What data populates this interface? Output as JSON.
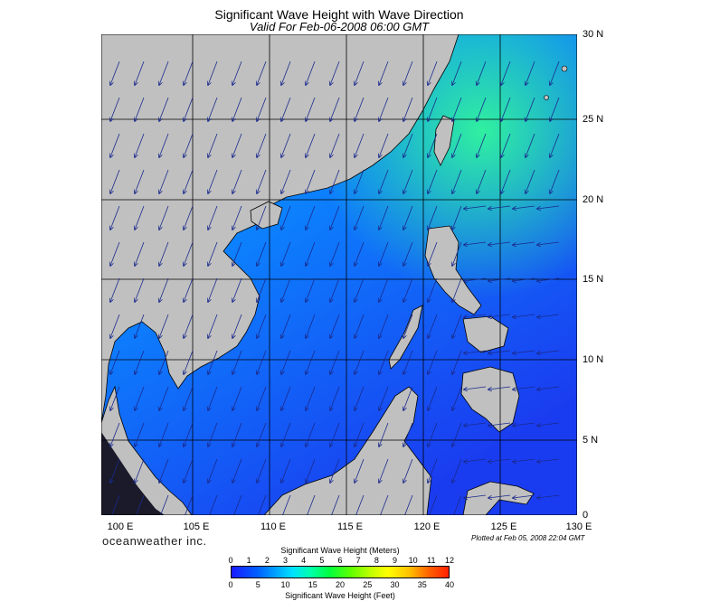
{
  "title": "Significant Wave Height with Wave Direction",
  "subtitle": "Valid For Feb-06-2008 06:00 GMT",
  "brand": "oceanweather inc.",
  "plotted": "Plotted at Feb 05, 2008 22:04 GMT",
  "lat_labels": [
    "30 N",
    "25 N",
    "20 N",
    "15 N",
    "10 N",
    "5 N",
    "0"
  ],
  "lon_labels": [
    "100 E",
    "105 E",
    "110 E",
    "115 E",
    "120 E",
    "125 E",
    "130 E"
  ],
  "colorbar": {
    "title_meters": "Significant Wave Height (Meters)",
    "title_feet": "Significant Wave Height (Feet)",
    "meters_ticks": [
      "0",
      "1",
      "2",
      "3",
      "4",
      "5",
      "6",
      "7",
      "8",
      "9",
      "10",
      "11",
      "12"
    ],
    "feet_ticks": [
      "0",
      "5",
      "10",
      "15",
      "20",
      "25",
      "30",
      "35",
      "40"
    ]
  },
  "colors": {
    "land": "#c0c0c0",
    "sea_low": "#1a3cff",
    "sea_mid": "#0a8cff",
    "sea_high": "#19e6b4"
  },
  "icons": {
    "arrow": "wave-direction-arrow"
  }
}
